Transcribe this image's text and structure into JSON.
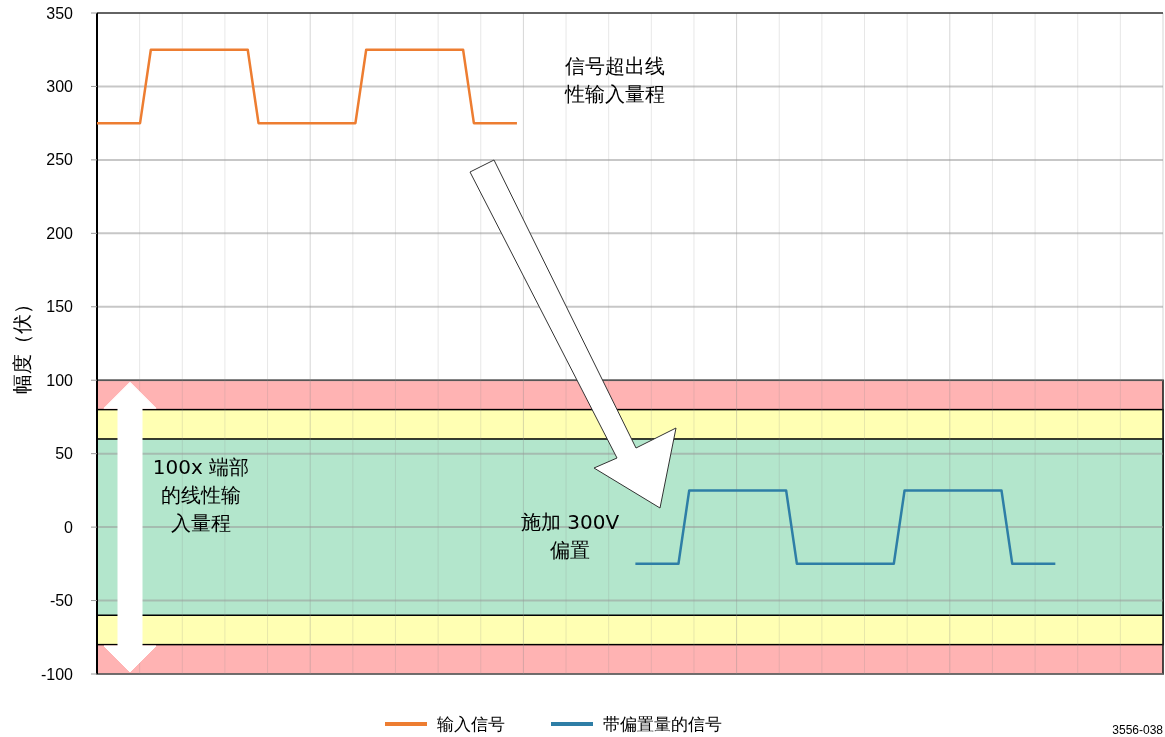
{
  "chart_data": {
    "type": "line",
    "ylabel": "幅度（伏）",
    "categories": [
      null,
      null,
      null,
      null,
      null,
      null,
      null,
      null,
      null,
      null,
      null,
      null,
      null,
      null,
      null,
      null,
      null,
      null,
      null,
      null,
      null,
      null,
      null,
      null,
      null,
      null,
      null,
      null,
      null,
      null,
      null,
      null,
      null,
      null,
      null,
      null,
      null,
      null,
      null,
      null,
      null,
      null,
      null,
      null,
      null,
      null,
      null,
      null,
      null,
      null,
      null,
      null,
      null,
      null,
      null,
      null,
      null,
      null,
      null,
      null,
      null,
      null,
      null,
      null,
      null,
      null,
      null,
      null,
      null,
      null,
      null,
      null,
      null,
      null,
      null,
      null,
      null,
      null,
      null,
      null,
      null,
      null,
      null,
      null,
      null,
      null,
      null,
      null,
      null,
      null,
      null,
      null,
      null,
      null,
      null,
      null,
      null,
      null,
      null,
      null
    ],
    "series": [
      {
        "name": "输入信号",
        "color": "#ed7d31",
        "values": [
          275,
          275,
          275,
          275,
          275,
          325,
          325,
          325,
          325,
          325,
          325,
          325,
          325,
          325,
          325,
          275,
          275,
          275,
          275,
          275,
          275,
          275,
          275,
          275,
          275,
          325,
          325,
          325,
          325,
          325,
          325,
          325,
          325,
          325,
          325,
          275,
          275,
          275,
          275,
          275,
          null,
          null,
          null,
          null,
          null,
          null,
          null,
          null,
          null,
          null,
          null,
          null,
          null,
          null,
          null,
          null,
          null,
          null,
          null,
          null,
          null,
          null,
          null,
          null,
          null,
          null,
          null,
          null,
          null,
          null,
          null,
          null,
          null,
          null,
          null,
          null,
          null,
          null,
          null,
          null,
          null,
          null,
          null,
          null,
          null,
          null,
          null,
          null,
          null,
          null,
          null,
          null,
          null,
          null,
          null,
          null,
          null,
          null,
          null,
          null
        ]
      },
      {
        "name": "带偏置量的信号",
        "color": "#2e7ea6",
        "values": [
          null,
          null,
          null,
          null,
          null,
          null,
          null,
          null,
          null,
          null,
          null,
          null,
          null,
          null,
          null,
          null,
          null,
          null,
          null,
          null,
          null,
          null,
          null,
          null,
          null,
          null,
          null,
          null,
          null,
          null,
          null,
          null,
          null,
          null,
          null,
          null,
          null,
          null,
          null,
          null,
          null,
          null,
          null,
          null,
          null,
          null,
          null,
          null,
          null,
          null,
          -25,
          -25,
          -25,
          -25,
          -25,
          25,
          25,
          25,
          25,
          25,
          25,
          25,
          25,
          25,
          25,
          -25,
          -25,
          -25,
          -25,
          -25,
          -25,
          -25,
          -25,
          -25,
          -25,
          25,
          25,
          25,
          25,
          25,
          25,
          25,
          25,
          25,
          25,
          -25,
          -25,
          -25,
          -25,
          -25,
          null,
          null,
          null,
          null,
          null,
          null,
          null,
          null,
          null,
          null
        ]
      }
    ],
    "ylim": [
      -100,
      350
    ],
    "yticks": [
      -100,
      -50,
      0,
      50,
      100,
      150,
      200,
      250,
      300,
      350
    ],
    "grid": true,
    "legend": "bottom",
    "marker": "none",
    "line_style": "solid",
    "bands": [
      {
        "axis": "y",
        "from": -100,
        "to": 100,
        "color": "#ffb3b3"
      },
      {
        "axis": "y",
        "from": -80,
        "to": 80,
        "color": "#ffffb3"
      },
      {
        "axis": "y",
        "from": -60,
        "to": 60,
        "color": "#b3e6cc"
      }
    ],
    "annotations": [
      "信号超出线性输入量程",
      "施加 300V 偏置",
      "100x 端部的线性输入量程",
      "3556-038"
    ]
  }
}
